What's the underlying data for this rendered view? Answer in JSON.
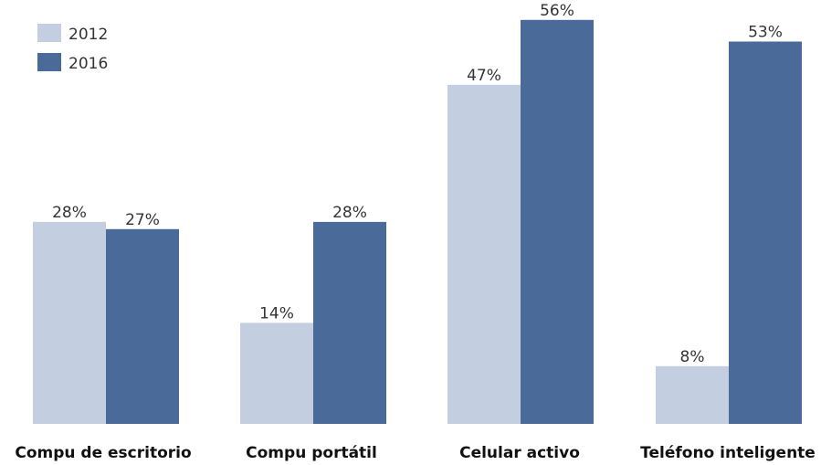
{
  "chart_data": {
    "type": "bar",
    "categories": [
      "Compu de escritorio",
      "Compu portátil",
      "Celular activo",
      "Teléfono inteligente"
    ],
    "series": [
      {
        "name": "2012",
        "values": [
          28,
          14,
          47,
          8
        ],
        "labels": [
          "28%",
          "14%",
          "47%",
          "8%"
        ],
        "color": "#c3cfe1"
      },
      {
        "name": "2016",
        "values": [
          27,
          28,
          56,
          53
        ],
        "labels": [
          "27%",
          "28%",
          "56%",
          "53%"
        ],
        "color": "#4a6b9a"
      }
    ],
    "ylim": [
      0,
      58
    ],
    "legend": "top-left",
    "grid": false
  }
}
